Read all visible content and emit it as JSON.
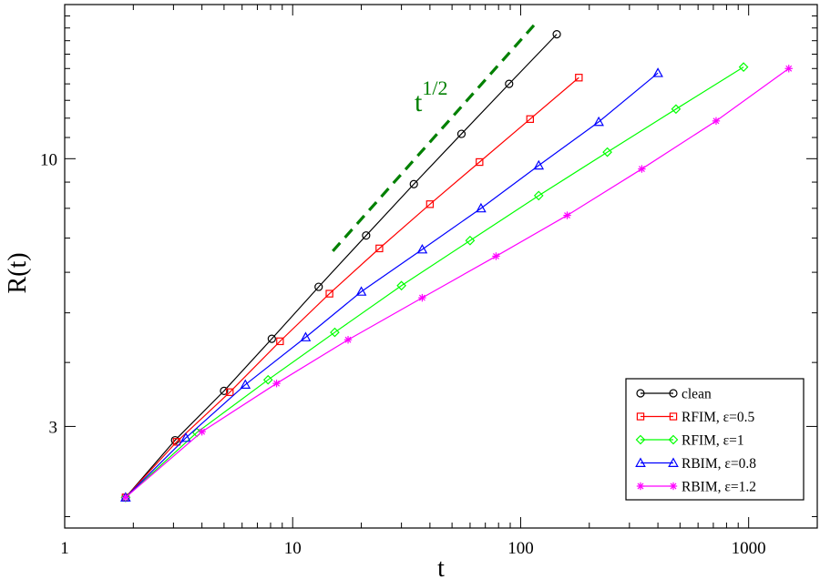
{
  "chart_data": {
    "type": "line",
    "xlabel": "t",
    "ylabel": "R(t)",
    "xscale": "log",
    "yscale": "log",
    "xlim": [
      1,
      2000
    ],
    "ylim": [
      1.9,
      20
    ],
    "xticks": [
      {
        "value": 1,
        "label": "1"
      },
      {
        "value": 10,
        "label": "10"
      },
      {
        "value": 100,
        "label": "100"
      },
      {
        "value": 1000,
        "label": "1000"
      }
    ],
    "yticks": [
      {
        "value": 3,
        "label": "3"
      },
      {
        "value": 10,
        "label": "10"
      }
    ],
    "grid": false,
    "legend_position": "bottom-right",
    "annotation": {
      "text": "t",
      "superscript": "1/2",
      "color": "#008000",
      "slope": 0.5,
      "x_range": [
        15,
        115
      ],
      "y_start": 6.6
    },
    "series": [
      {
        "name": "clean",
        "color": "#000000",
        "marker": "circle",
        "x": [
          1.85,
          3.05,
          5.0,
          8.1,
          13.0,
          21.0,
          34.0,
          55.0,
          89.0,
          144.0
        ],
        "y": [
          2.18,
          2.82,
          3.52,
          4.45,
          5.62,
          7.08,
          8.92,
          11.18,
          14.0,
          17.5
        ]
      },
      {
        "name": "RFIM, ε=0.5",
        "color": "#ff0000",
        "marker": "square",
        "x": [
          1.85,
          3.1,
          5.3,
          8.8,
          14.5,
          24.0,
          40.0,
          66.0,
          110.0,
          180.0
        ],
        "y": [
          2.18,
          2.8,
          3.5,
          4.4,
          5.45,
          6.68,
          8.15,
          9.85,
          11.95,
          14.4
        ]
      },
      {
        "name": "RFIM, ε=1",
        "color": "#00ff00",
        "marker": "diamond",
        "x": [
          1.85,
          3.8,
          7.8,
          15.3,
          30.0,
          60.0,
          120.0,
          240.0,
          480.0,
          950.0
        ],
        "y": [
          2.18,
          2.92,
          3.7,
          4.58,
          5.65,
          6.92,
          8.47,
          10.3,
          12.5,
          15.1
        ]
      },
      {
        "name": "RBIM, ε=0.8",
        "color": "#0000ff",
        "marker": "triangle",
        "x": [
          1.85,
          3.4,
          6.2,
          11.4,
          20.0,
          37.0,
          67.0,
          120.0,
          220.0,
          400.0
        ],
        "y": [
          2.18,
          2.85,
          3.62,
          4.48,
          5.5,
          6.65,
          8.0,
          9.7,
          11.8,
          14.7
        ]
      },
      {
        "name": "RBIM, ε=1.2",
        "color": "#ff00ff",
        "marker": "star",
        "x": [
          1.85,
          4.0,
          8.5,
          17.5,
          37.0,
          78.0,
          160.0,
          340.0,
          720.0,
          1500.0
        ],
        "y": [
          2.18,
          2.93,
          3.64,
          4.43,
          5.35,
          6.45,
          7.75,
          9.55,
          11.85,
          15.0
        ]
      }
    ]
  }
}
